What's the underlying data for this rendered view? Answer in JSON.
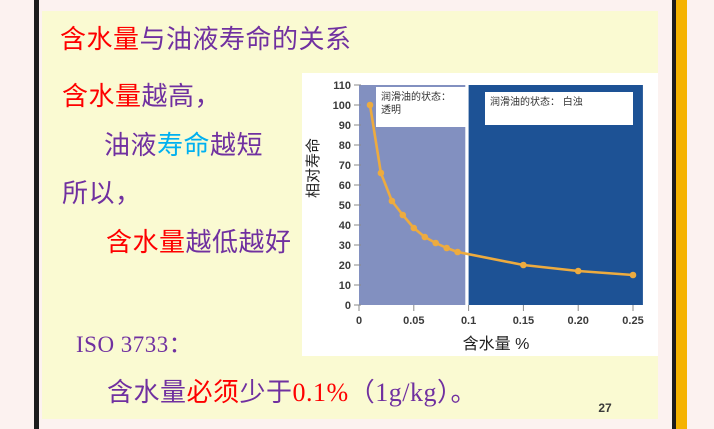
{
  "palette": {
    "red": "#FE0000",
    "purple": "#7030A0",
    "cyan": "#00B0F0",
    "slide_bg": "#FAFAD2",
    "outer_bg": "#FCF2F0",
    "frame_line": "#1C1C1C",
    "gold_bar": "#F5B301",
    "chart_panel_bg": "#FFFFFF"
  },
  "slide": {
    "title_segments": [
      {
        "text": "含水量",
        "color": "red"
      },
      {
        "text": "与油液寿命的关系",
        "color": "purple"
      }
    ],
    "body_lines": [
      {
        "segments": [
          {
            "text": "含水量",
            "color": "red"
          },
          {
            "text": "越高，",
            "color": "purple"
          }
        ]
      },
      {
        "segments": [
          {
            "text": "油液",
            "color": "purple"
          },
          {
            "text": "寿命",
            "color": "cyan"
          },
          {
            "text": "越短",
            "color": "purple"
          }
        ]
      },
      {
        "segments": [
          {
            "text": "所以，",
            "color": "purple"
          }
        ]
      },
      {
        "segments": [
          {
            "text": "含水量",
            "color": "red"
          },
          {
            "text": "越低越好",
            "color": "purple"
          }
        ]
      }
    ],
    "iso_segments": [
      {
        "text": "ISO 3733：",
        "color": "purple"
      }
    ],
    "conclusion_segments": [
      {
        "text": "含水量",
        "color": "purple"
      },
      {
        "text": "必须",
        "color": "red"
      },
      {
        "text": "少于",
        "color": "purple"
      },
      {
        "text": "0.1%",
        "color": "red"
      },
      {
        "text": "（1g/kg）。",
        "color": "purple"
      }
    ],
    "page_number": "27"
  },
  "chart_data": {
    "type": "line",
    "xlabel": "含水量  %",
    "ylabel": "相对寿命",
    "xlim": [
      0,
      0.25
    ],
    "ylim": [
      0,
      110
    ],
    "x_ticks": [
      0,
      0.05,
      0.1,
      0.15,
      0.2,
      0.25
    ],
    "x_tick_labels": [
      "0",
      "0.05",
      "0.1",
      "0.15",
      "0.20",
      "0.25"
    ],
    "y_ticks": [
      0,
      10,
      20,
      30,
      40,
      50,
      60,
      70,
      80,
      90,
      100,
      110
    ],
    "points": [
      [
        0.01,
        100
      ],
      [
        0.02,
        66
      ],
      [
        0.03,
        52
      ],
      [
        0.04,
        45
      ],
      [
        0.05,
        38.5
      ],
      [
        0.06,
        34
      ],
      [
        0.07,
        31
      ],
      [
        0.08,
        28.5
      ],
      [
        0.09,
        26.5
      ],
      [
        0.15,
        20
      ],
      [
        0.2,
        17
      ],
      [
        0.25,
        15
      ]
    ],
    "line_color": "#EDAB3F",
    "regions": [
      {
        "x0": 0,
        "x1": 0.097,
        "color": "#8290C0",
        "label_lines": [
          "润滑油的状态：",
          "透明"
        ]
      },
      {
        "x0": 0.1,
        "x1": 0.259,
        "color": "#1D5295",
        "label_lines": [
          "润滑油的状态： 白浊"
        ]
      }
    ],
    "grid": false,
    "legend": "none"
  }
}
